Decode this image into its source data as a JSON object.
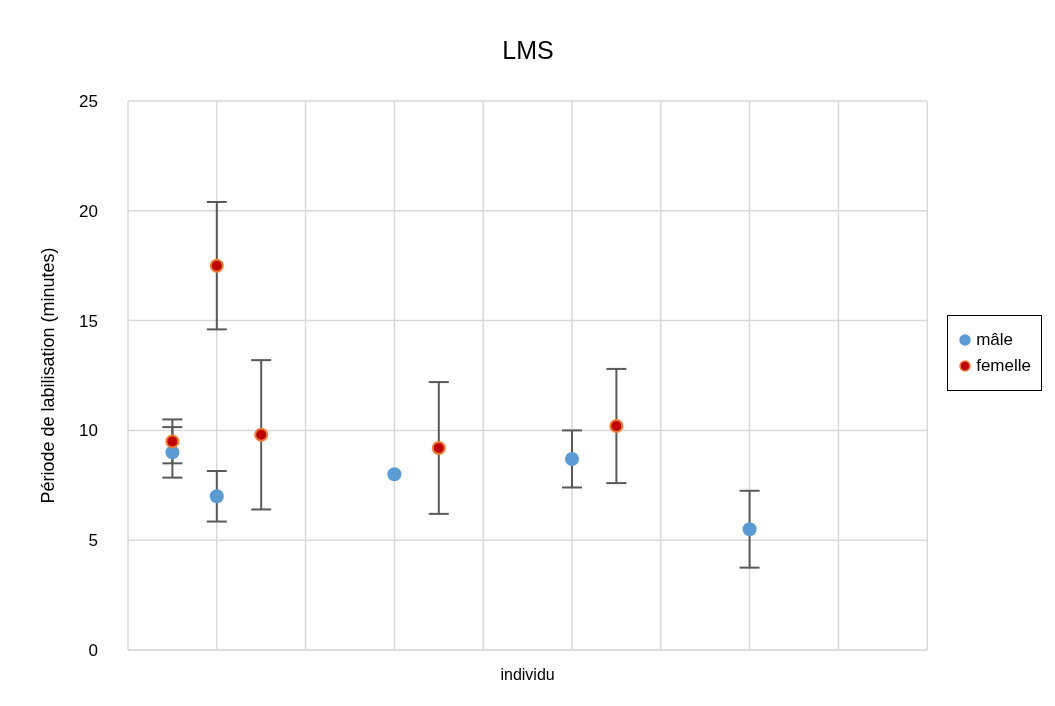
{
  "chart_data": {
    "type": "scatter",
    "title": "LMS",
    "xlabel": "individu",
    "ylabel": "Période de labilisation (minutes)",
    "categories": [
      null,
      null,
      null,
      null,
      null,
      null,
      null,
      null,
      null,
      null,
      null,
      null,
      null,
      null,
      null,
      null,
      null
    ],
    "ylim": [
      0,
      25
    ],
    "yticks": [
      0,
      5,
      10,
      15,
      20,
      25
    ],
    "tick_labels": "y",
    "grid": true,
    "legend": "right",
    "marker": "circle",
    "series": [
      {
        "name": "mâle",
        "color": "#5b9bd5",
        "values": [
          9,
          7,
          null,
          null,
          null,
          8,
          null,
          null,
          null,
          8.7,
          null,
          null,
          null,
          5.5,
          null,
          null,
          null
        ],
        "errors": [
          1.15,
          1.15,
          null,
          null,
          null,
          null,
          null,
          null,
          null,
          1.3,
          null,
          null,
          null,
          1.75,
          null,
          null,
          null
        ]
      },
      {
        "name": "femelle",
        "color": "#c00000",
        "values": [
          9.5,
          17.5,
          9.8,
          null,
          null,
          null,
          9.2,
          null,
          null,
          null,
          10.2,
          null,
          null,
          null,
          null,
          null,
          null
        ],
        "errors": [
          1,
          2.9,
          3.4,
          null,
          null,
          null,
          3,
          null,
          null,
          null,
          2.6,
          null,
          null,
          null,
          null,
          null,
          null
        ]
      }
    ]
  }
}
